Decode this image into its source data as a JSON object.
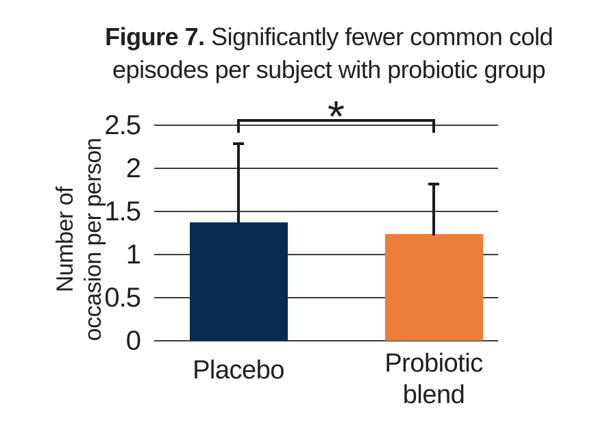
{
  "figure": {
    "title": {
      "line1_bold": "Figure 7.",
      "line1_rest": " Significantly fewer common cold",
      "line2": "episodes per subject with probiotic group"
    }
  },
  "chart_data": {
    "type": "bar",
    "title": "Figure 7. Significantly fewer common cold episodes per subject with probiotic group",
    "categories": [
      "Placebo",
      "Probiotic blend"
    ],
    "values": [
      1.37,
      1.24
    ],
    "error_upper": [
      0.93,
      0.59
    ],
    "error_bar_tops": [
      2.3,
      1.83
    ],
    "ylabel": "Number of occasion per person",
    "ylabel_lines": [
      "Number of",
      "occasion per person"
    ],
    "yticks": [
      0,
      0.5,
      1,
      1.5,
      2,
      2.5
    ],
    "ytick_labels": [
      "0",
      "0.5",
      "1",
      "1.5",
      "2",
      "2.5"
    ],
    "ylim": [
      0,
      2.5
    ],
    "xlabel": "",
    "grid": true,
    "legend": "none",
    "significance_marker": "*",
    "series_colors": [
      "#082b52",
      "#ed7d3a"
    ],
    "gridline_color": "#3c3c3c",
    "text_color": "#221f20"
  }
}
